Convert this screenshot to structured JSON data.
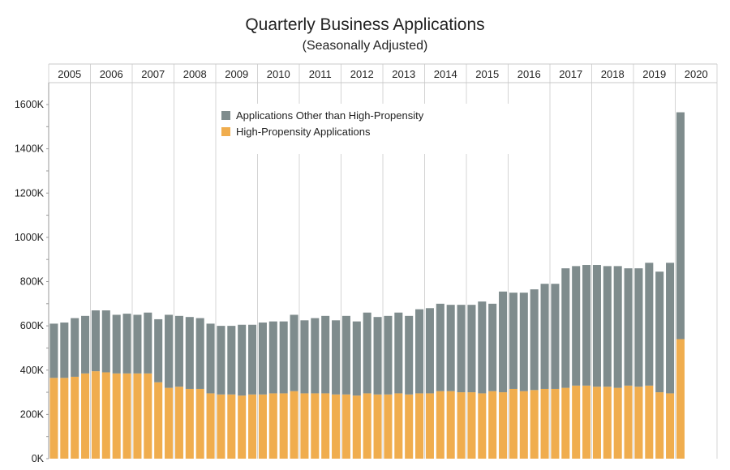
{
  "chart_data": {
    "type": "bar",
    "stacked": true,
    "title": "Quarterly Business Applications",
    "subtitle": "(Seasonally Adjusted)",
    "xlabel": "",
    "ylabel": "",
    "ylim": [
      0,
      1700000
    ],
    "yticks": [
      0,
      200000,
      400000,
      600000,
      800000,
      1000000,
      1200000,
      1400000,
      1600000
    ],
    "ytick_labels": [
      "0K",
      "200K",
      "400K",
      "600K",
      "800K",
      "1000K",
      "1200K",
      "1400K",
      "1600K"
    ],
    "years": [
      "2005",
      "2006",
      "2007",
      "2008",
      "2009",
      "2010",
      "2011",
      "2012",
      "2013",
      "2014",
      "2015",
      "2016",
      "2017",
      "2018",
      "2019",
      "2020"
    ],
    "quarters_per_year": 4,
    "legend_position": "top-center",
    "grid": true,
    "series": [
      {
        "name": "Applications Other than High-Propensity",
        "color": "#7f8c8d",
        "values": [
          245000,
          250000,
          265000,
          260000,
          275000,
          280000,
          265000,
          270000,
          265000,
          275000,
          285000,
          330000,
          320000,
          325000,
          320000,
          315000,
          310000,
          310000,
          320000,
          315000,
          325000,
          325000,
          325000,
          345000,
          330000,
          340000,
          350000,
          335000,
          355000,
          335000,
          365000,
          350000,
          355000,
          365000,
          355000,
          380000,
          385000,
          395000,
          390000,
          395000,
          395000,
          415000,
          395000,
          455000,
          435000,
          445000,
          455000,
          475000,
          475000,
          540000,
          540000,
          545000,
          550000,
          545000,
          550000,
          530000,
          535000,
          555000,
          545000,
          590000,
          1025000
        ]
      },
      {
        "name": "High-Propensity Applications",
        "color": "#f0ad4e",
        "values": [
          365000,
          365000,
          370000,
          385000,
          395000,
          390000,
          385000,
          385000,
          385000,
          385000,
          345000,
          320000,
          325000,
          315000,
          315000,
          295000,
          290000,
          290000,
          285000,
          290000,
          290000,
          295000,
          295000,
          305000,
          295000,
          295000,
          295000,
          290000,
          290000,
          285000,
          295000,
          290000,
          290000,
          295000,
          290000,
          295000,
          295000,
          305000,
          305000,
          300000,
          300000,
          295000,
          305000,
          300000,
          315000,
          305000,
          310000,
          315000,
          315000,
          320000,
          330000,
          330000,
          325000,
          325000,
          320000,
          330000,
          325000,
          330000,
          300000,
          295000,
          540000
        ]
      }
    ]
  }
}
